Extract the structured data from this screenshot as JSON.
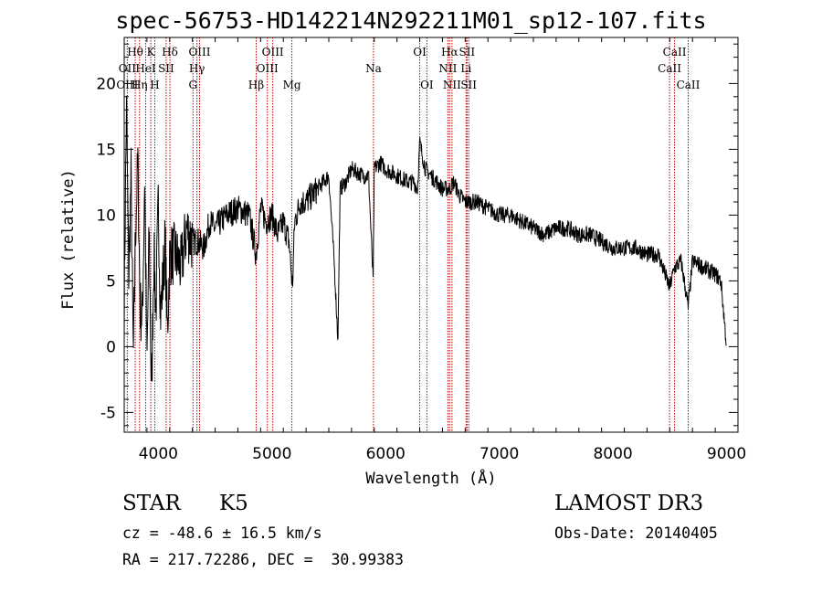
{
  "chart_data": {
    "type": "line",
    "title": "spec-56753-HD142214N292211M01_sp12-107.fits",
    "xlabel": "Wavelength (Å)",
    "ylabel": "Flux (relative)",
    "xlim": [
      3700,
      9100
    ],
    "ylim": [
      -6.5,
      23.5
    ],
    "xticks": [
      4000,
      5000,
      6000,
      7000,
      8000,
      9000
    ],
    "yticks": [
      -5,
      0,
      5,
      10,
      15,
      20
    ],
    "series": [
      {
        "name": "flux",
        "x": [
          3700,
          3720,
          3740,
          3760,
          3780,
          3800,
          3820,
          3840,
          3860,
          3880,
          3900,
          3920,
          3940,
          3960,
          3980,
          4000,
          4020,
          4040,
          4060,
          4080,
          4100,
          4150,
          4200,
          4250,
          4300,
          4350,
          4400,
          4450,
          4500,
          4600,
          4700,
          4800,
          4860,
          4900,
          4950,
          5000,
          5050,
          5100,
          5150,
          5180,
          5200,
          5250,
          5300,
          5400,
          5500,
          5550,
          5580,
          5600,
          5650,
          5700,
          5800,
          5850,
          5890,
          5900,
          5950,
          6000,
          6100,
          6200,
          6250,
          6280,
          6300,
          6350,
          6400,
          6500,
          6563,
          6600,
          6650,
          6700,
          6800,
          6900,
          7000,
          7100,
          7200,
          7300,
          7400,
          7500,
          7600,
          7700,
          7800,
          7900,
          8000,
          8100,
          8200,
          8300,
          8400,
          8498,
          8542,
          8600,
          8662,
          8700,
          8800,
          8900,
          8950,
          9000
        ],
        "y": [
          3,
          18.5,
          5,
          13,
          -1,
          9,
          14,
          3,
          2,
          13,
          -1.5,
          9,
          -4,
          7,
          3,
          11,
          2.5,
          5,
          8,
          1,
          7,
          7,
          6,
          9,
          8,
          8,
          7.5,
          9.5,
          9,
          10,
          10.5,
          10,
          7,
          10.5,
          9.5,
          10,
          8.5,
          9.5,
          8,
          4.5,
          9.5,
          11,
          11,
          12,
          13,
          6,
          0.5,
          12,
          12.5,
          13.5,
          13,
          13,
          5,
          13.5,
          14,
          13.5,
          13,
          12.5,
          12.5,
          12,
          15.5,
          13.5,
          13,
          12,
          12,
          12.5,
          11.5,
          11,
          11,
          10.5,
          10,
          10,
          9.5,
          9,
          8.5,
          9,
          9,
          8.5,
          8.5,
          8,
          7.5,
          7.5,
          7.5,
          7,
          7,
          4.5,
          6,
          6.5,
          3,
          6.5,
          6,
          5.5,
          5,
          0
        ]
      }
    ],
    "lines": [
      {
        "label": "Hθ",
        "wl": 3797,
        "row": 0
      },
      {
        "label": "OII",
        "wl": 3727,
        "row": 1
      },
      {
        "label": "OIII",
        "wl": 3727,
        "row": 2
      },
      {
        "label": "K",
        "wl": 3934,
        "row": 0
      },
      {
        "label": "Hδ",
        "wl": 4102,
        "row": 0
      },
      {
        "label": "HeI",
        "wl": 3889,
        "row": 1
      },
      {
        "label": "Hη",
        "wl": 3835,
        "row": 2
      },
      {
        "label": "SII",
        "wl": 4069,
        "row": 1
      },
      {
        "label": "H",
        "wl": 3969,
        "row": 2
      },
      {
        "label": "OIII",
        "wl": 4363,
        "row": 0
      },
      {
        "label": "Hγ",
        "wl": 4340,
        "row": 1
      },
      {
        "label": "G",
        "wl": 4305,
        "row": 2
      },
      {
        "label": "OIII",
        "wl": 5007,
        "row": 0
      },
      {
        "label": "OIII",
        "wl": 4959,
        "row": 1
      },
      {
        "label": "Hβ",
        "wl": 4861,
        "row": 2
      },
      {
        "label": "Mg",
        "wl": 5175,
        "row": 2
      },
      {
        "label": "Na",
        "wl": 5893,
        "row": 1
      },
      {
        "label": "OI",
        "wl": 6300,
        "row": 0
      },
      {
        "label": "OI",
        "wl": 6363,
        "row": 2
      },
      {
        "label": "Hα",
        "wl": 6563,
        "row": 0
      },
      {
        "label": "SII",
        "wl": 6716,
        "row": 0
      },
      {
        "label": "NII",
        "wl": 6548,
        "row": 1
      },
      {
        "label": "Li",
        "wl": 6708,
        "row": 1
      },
      {
        "label": "NII",
        "wl": 6584,
        "row": 2
      },
      {
        "label": "SII",
        "wl": 6731,
        "row": 2
      },
      {
        "label": "CaII",
        "wl": 8542,
        "row": 0
      },
      {
        "label": "CaII",
        "wl": 8498,
        "row": 1
      },
      {
        "label": "CaII",
        "wl": 8662,
        "row": 2
      }
    ]
  },
  "info": {
    "class": "STAR",
    "subclass": "K5",
    "survey": "LAMOST DR3",
    "cz": "cz = -48.6 ± 16.5 km/s",
    "obs_date": "Obs-Date: 20140405",
    "coords": "RA = 217.72286, DEC =  30.99383"
  }
}
